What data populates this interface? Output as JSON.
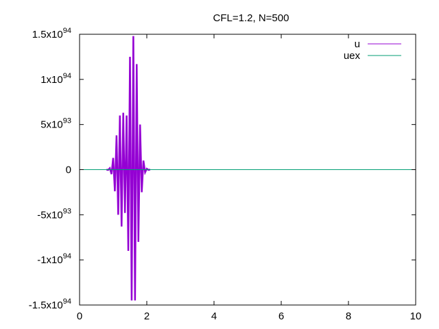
{
  "chart_data": {
    "type": "line",
    "title": "CFL=1.2, N=500",
    "xlabel": "",
    "ylabel": "",
    "xlim": [
      0,
      10
    ],
    "ylim": [
      -1.5e+94,
      1.5e+94
    ],
    "grid": false,
    "legend_position": "top-right",
    "x_ticks": [
      {
        "value": 0,
        "label": "0"
      },
      {
        "value": 2,
        "label": "2"
      },
      {
        "value": 4,
        "label": "4"
      },
      {
        "value": 6,
        "label": "6"
      },
      {
        "value": 8,
        "label": "8"
      },
      {
        "value": 10,
        "label": "10"
      }
    ],
    "y_ticks": [
      {
        "value": 1.5e+94,
        "mantissa": "1.5x10",
        "exp": "94"
      },
      {
        "value": 1e+94,
        "mantissa": "1x10",
        "exp": "94"
      },
      {
        "value": 5e+93,
        "mantissa": "5x10",
        "exp": "93"
      },
      {
        "value": 0,
        "mantissa": "0",
        "exp": ""
      },
      {
        "value": -5e+93,
        "mantissa": "-5x10",
        "exp": "93"
      },
      {
        "value": -1e+94,
        "mantissa": "-1x10",
        "exp": "94"
      },
      {
        "value": -1.5e+94,
        "mantissa": "-1.5x10",
        "exp": "94"
      }
    ],
    "series": [
      {
        "name": "u",
        "color": "#9400d3",
        "x": [
          0.8,
          0.85,
          0.9,
          0.95,
          1.0,
          1.05,
          1.1,
          1.15,
          1.2,
          1.25,
          1.3,
          1.35,
          1.4,
          1.45,
          1.5,
          1.55,
          1.6,
          1.65,
          1.7,
          1.75,
          1.8,
          1.85,
          1.9,
          1.95,
          2.0,
          2.05,
          2.1
        ],
        "y": [
          1e+91,
          -4e+91,
          1.6e+92,
          -5e+92,
          1.3e+93,
          -2.4e+93,
          3.8e+93,
          -5e+93,
          6e+93,
          -6.3e+93,
          6.3e+93,
          -4.8e+93,
          6e+93,
          -9e+93,
          1.25e+94,
          -1.45e+94,
          1.48e+94,
          -1.45e+94,
          1.17e+94,
          -8e+93,
          5e+93,
          -2.5e+93,
          1e+93,
          -3e+92,
          1e+92,
          -3e+91,
          1e+91
        ]
      },
      {
        "name": "uex",
        "color": "#009e73",
        "x": [
          0,
          10
        ],
        "y": [
          0,
          0
        ]
      }
    ]
  }
}
